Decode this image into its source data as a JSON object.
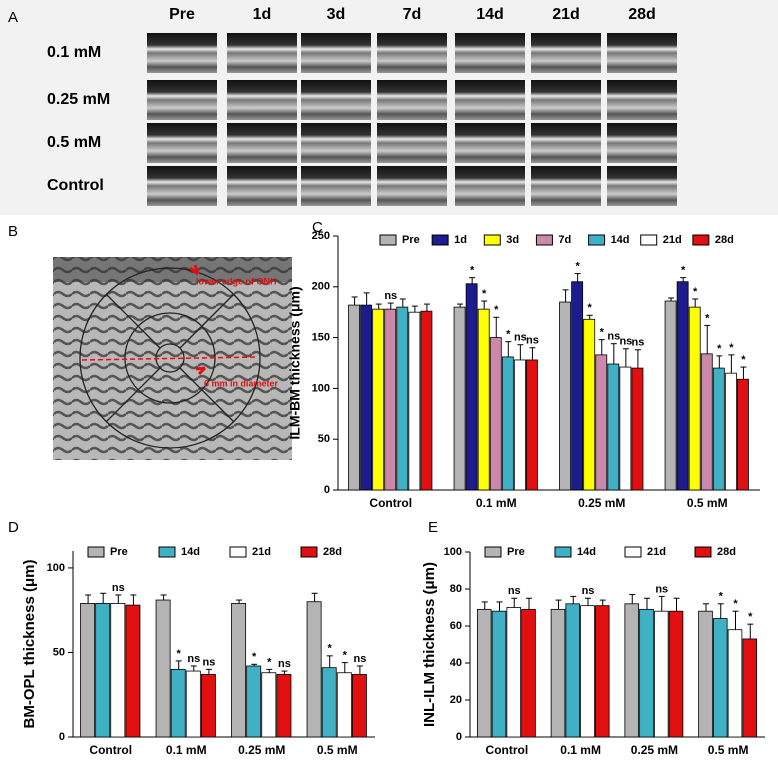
{
  "panel_a": {
    "label": "A",
    "columns": [
      "Pre",
      "1d",
      "3d",
      "7d",
      "14d",
      "21d",
      "28d"
    ],
    "rows": [
      "0.1 mM",
      "0.25 mM",
      "0.5 mM",
      "Control"
    ]
  },
  "panel_b": {
    "label": "B",
    "annotations": [
      "lower edge of ONH",
      "6 mm in diameter"
    ]
  },
  "chart_data": [
    {
      "type": "bar",
      "panel_label": "C",
      "y_label": "ILM-BM thickness (μm)",
      "categories": [
        "Control",
        "0.1 mM",
        "0.25 mM",
        "0.5 mM"
      ],
      "ylim": [
        0,
        250
      ],
      "yticks": [
        0,
        50,
        100,
        150,
        200,
        250
      ],
      "series": [
        {
          "name": "Pre",
          "color": "#b4b4b4",
          "values": [
            182,
            180,
            185,
            186
          ],
          "errors": [
            8,
            3,
            12,
            3
          ],
          "annotations": [
            null,
            null,
            null,
            null
          ]
        },
        {
          "name": "1d",
          "color": "#1c1c8c",
          "values": [
            182,
            203,
            205,
            205
          ],
          "errors": [
            12,
            6,
            8,
            4
          ],
          "annotations": [
            null,
            "*",
            "*",
            "*"
          ]
        },
        {
          "name": "3d",
          "color": "#ffff00",
          "values": [
            178,
            178,
            168,
            180
          ],
          "errors": [
            5,
            8,
            4,
            8
          ],
          "annotations": [
            null,
            "*",
            "*",
            "*"
          ]
        },
        {
          "name": "7d",
          "color": "#cc88aa",
          "values": [
            178,
            150,
            133,
            134
          ],
          "errors": [
            6,
            20,
            15,
            28
          ],
          "annotations": [
            "ns",
            "*",
            "*",
            "*"
          ]
        },
        {
          "name": "14d",
          "color": "#40b0c4",
          "values": [
            180,
            131,
            124,
            120
          ],
          "errors": [
            8,
            15,
            20,
            12
          ],
          "annotations": [
            null,
            "*",
            "ns",
            "*"
          ]
        },
        {
          "name": "21d",
          "color": "#ffffff",
          "values": [
            175,
            128,
            121,
            115
          ],
          "errors": [
            6,
            15,
            18,
            18
          ],
          "annotations": [
            null,
            "ns",
            "ns",
            "*"
          ]
        },
        {
          "name": "28d",
          "color": "#e01010",
          "values": [
            176,
            128,
            120,
            109
          ],
          "errors": [
            7,
            12,
            18,
            12
          ],
          "annotations": [
            null,
            "ns",
            "ns",
            "*"
          ]
        }
      ]
    },
    {
      "type": "bar",
      "panel_label": "D",
      "y_label": "BM-OPL thickness (μm)",
      "categories": [
        "Control",
        "0.1 mM",
        "0.25 mM",
        "0.5 mM"
      ],
      "ylim": [
        0,
        110
      ],
      "yticks": [
        0,
        50,
        100
      ],
      "series": [
        {
          "name": "Pre",
          "color": "#b4b4b4",
          "values": [
            79,
            81,
            79,
            80
          ],
          "errors": [
            5,
            3,
            2,
            5
          ],
          "annotations": [
            null,
            null,
            null,
            null
          ]
        },
        {
          "name": "14d",
          "color": "#40b0c4",
          "values": [
            79,
            40,
            42,
            41
          ],
          "errors": [
            6,
            5,
            1,
            7
          ],
          "annotations": [
            null,
            "*",
            "*",
            "*"
          ]
        },
        {
          "name": "21d",
          "color": "#ffffff",
          "values": [
            79,
            39,
            38,
            38
          ],
          "errors": [
            5,
            3,
            2,
            6
          ],
          "annotations": [
            "ns",
            "ns",
            "*",
            "*"
          ]
        },
        {
          "name": "28d",
          "color": "#e01010",
          "values": [
            78,
            37,
            37,
            37
          ],
          "errors": [
            6,
            3,
            2,
            5
          ],
          "annotations": [
            null,
            "ns",
            "ns",
            "ns"
          ]
        }
      ]
    },
    {
      "type": "bar",
      "panel_label": "E",
      "y_label": "INL-ILM thickness (μm)",
      "categories": [
        "Control",
        "0.1 mM",
        "0.25 mM",
        "0.5 mM"
      ],
      "ylim": [
        0,
        100
      ],
      "yticks": [
        0,
        20,
        40,
        60,
        80,
        100
      ],
      "series": [
        {
          "name": "Pre",
          "color": "#b4b4b4",
          "values": [
            69,
            69,
            72,
            68
          ],
          "errors": [
            4,
            5,
            5,
            4
          ],
          "annotations": [
            null,
            null,
            null,
            null
          ]
        },
        {
          "name": "14d",
          "color": "#40b0c4",
          "values": [
            68,
            72,
            69,
            64
          ],
          "errors": [
            5,
            4,
            6,
            8
          ],
          "annotations": [
            null,
            null,
            null,
            "*"
          ]
        },
        {
          "name": "21d",
          "color": "#ffffff",
          "values": [
            70,
            71,
            68,
            58
          ],
          "errors": [
            5,
            4,
            8,
            10
          ],
          "annotations": [
            "ns",
            "ns",
            "ns",
            "*"
          ]
        },
        {
          "name": "28d",
          "color": "#e01010",
          "values": [
            69,
            71,
            68,
            53
          ],
          "errors": [
            6,
            3,
            7,
            8
          ],
          "annotations": [
            null,
            null,
            null,
            "*"
          ]
        }
      ]
    }
  ]
}
